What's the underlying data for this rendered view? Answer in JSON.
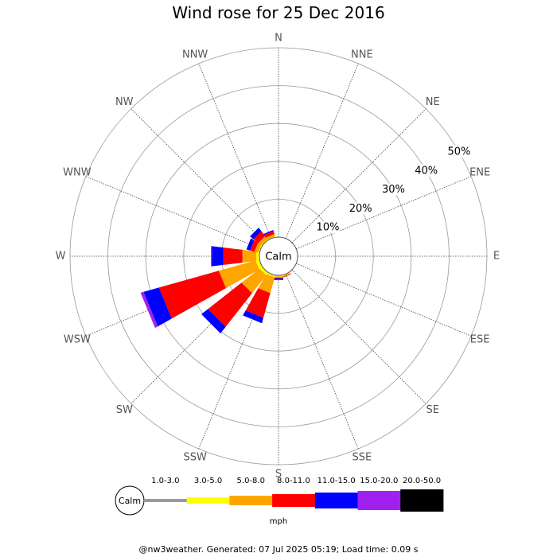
{
  "title": "Wind rose for 25 Dec 2016",
  "footer": "@nw3weather. Generated: 07 Jul 2025 05:19; Load time: 0.09 s",
  "chart_data": {
    "type": "windrose",
    "directions": [
      "N",
      "NNE",
      "NE",
      "ENE",
      "E",
      "ESE",
      "SE",
      "SSE",
      "S",
      "SSW",
      "SW",
      "WSW",
      "W",
      "WNW",
      "NW",
      "NNW"
    ],
    "radial_ticks": [
      10,
      20,
      30,
      40,
      50
    ],
    "radial_tick_labels": [
      "10%",
      "20%",
      "30%",
      "40%",
      "50%"
    ],
    "radial_max": 50,
    "calm_label": "Calm",
    "unit_label": "mph",
    "speed_bins": [
      {
        "label": "1.0-3.0",
        "color": "#999999"
      },
      {
        "label": "3.0-5.0",
        "color": "#ffff00"
      },
      {
        "label": "5.0-8.0",
        "color": "#ffa500"
      },
      {
        "label": "8.0-11.0",
        "color": "#ff0000"
      },
      {
        "label": "11.0-15.0",
        "color": "#0000ff"
      },
      {
        "label": "15.0-20.0",
        "color": "#a020f0"
      },
      {
        "label": "20.0-50.0",
        "color": "#000000"
      }
    ],
    "frequencies_cumulative_percent": {
      "N": [
        0,
        0,
        0,
        0,
        0,
        0,
        0
      ],
      "NNE": [
        0,
        0,
        0,
        0,
        0,
        0,
        0
      ],
      "NE": [
        0,
        0,
        0,
        0,
        0,
        0,
        0
      ],
      "ENE": [
        0,
        0,
        0,
        0,
        0,
        0,
        0
      ],
      "E": [
        0,
        0,
        0,
        0,
        0,
        0,
        0
      ],
      "ESE": [
        0,
        0,
        0,
        0,
        0,
        0,
        0
      ],
      "SE": [
        0,
        0,
        0,
        0,
        0,
        0,
        0
      ],
      "SSE": [
        0,
        0.3,
        0.4,
        0.6,
        0.6,
        0.6,
        0.6
      ],
      "S": [
        0,
        0.3,
        0.6,
        0.8,
        1.2,
        1.2,
        1.2
      ],
      "SSW": [
        0,
        0.5,
        4.8,
        11.5,
        13.0,
        13.0,
        13.0
      ],
      "SW": [
        0,
        0.8,
        6.8,
        18.0,
        20.2,
        20.2,
        20.2
      ],
      "WSW": [
        0,
        1.0,
        11.0,
        27.3,
        31.5,
        32.3,
        32.3
      ],
      "W": [
        0,
        0.8,
        4.5,
        9.5,
        12.5,
        12.8,
        12.8
      ],
      "WNW": [
        0,
        0.3,
        1.3,
        2.5,
        3.5,
        3.5,
        3.5
      ],
      "NW": [
        0,
        0.2,
        1.2,
        2.8,
        4.0,
        4.0,
        4.0
      ],
      "NNW": [
        0,
        0.2,
        0.8,
        1.6,
        1.9,
        1.9,
        1.9
      ]
    }
  }
}
